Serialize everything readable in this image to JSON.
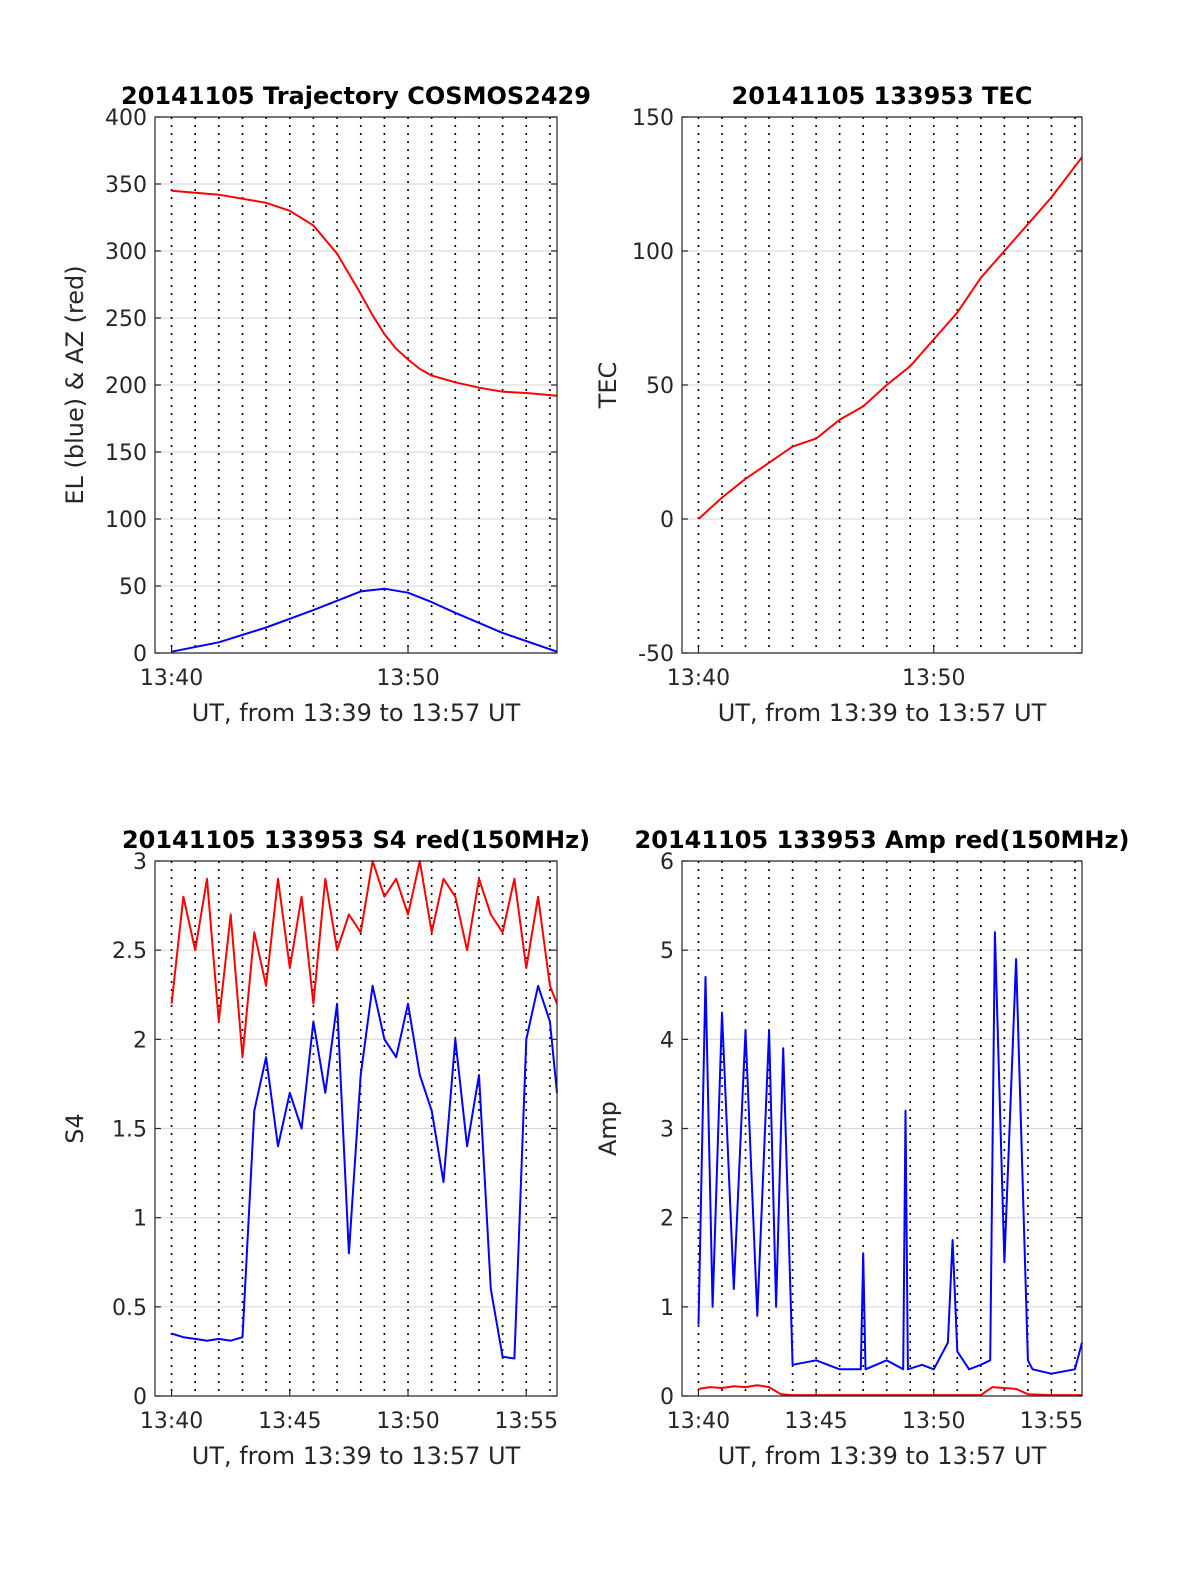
{
  "chart_data": [
    {
      "type": "line",
      "title": "20141105 Trajectory COSMOS2429",
      "xlabel": "UT, from 13:39 to 13:57 UT",
      "ylabel": "EL (blue) & AZ (red)",
      "xlim": [
        13.3,
        30.3
      ],
      "ylim": [
        0,
        400
      ],
      "x_ticks": [
        {
          "value": 14,
          "label": "13:40"
        },
        {
          "value": 24,
          "label": "13:50"
        }
      ],
      "y_ticks": [
        0,
        50,
        100,
        150,
        200,
        250,
        300,
        350,
        400
      ],
      "grid": "on",
      "series": [
        {
          "color": "#ff0000",
          "x": [
            14,
            16,
            18,
            19,
            20,
            21,
            22,
            22.5,
            23,
            23.5,
            24,
            24.5,
            25,
            26,
            27,
            28,
            29,
            30.3
          ],
          "y": [
            345,
            342,
            336,
            330,
            319,
            298,
            268,
            252,
            238,
            227,
            219,
            212,
            207,
            202,
            198,
            195,
            194,
            192
          ]
        },
        {
          "color": "#0000ff",
          "x": [
            14,
            16,
            18,
            20,
            22,
            23,
            24,
            25,
            26,
            28,
            30.3
          ],
          "y": [
            1,
            8,
            19,
            32,
            46,
            48,
            45,
            38,
            30,
            15,
            1
          ]
        }
      ]
    },
    {
      "type": "line",
      "title": "20141105 133953 TEC",
      "xlabel": "UT, from 13:39 to 13:57 UT",
      "ylabel": "TEC",
      "xlim": [
        13.3,
        30.3
      ],
      "ylim": [
        -50,
        150
      ],
      "x_ticks": [
        {
          "value": 14,
          "label": "13:40"
        },
        {
          "value": 24,
          "label": "13:50"
        }
      ],
      "y_ticks": [
        -50,
        0,
        50,
        100,
        150
      ],
      "grid": "on",
      "series": [
        {
          "color": "#ff0000",
          "x": [
            14,
            15,
            16,
            17,
            18,
            19,
            20,
            21,
            22,
            23,
            24,
            25,
            26,
            27,
            28,
            29,
            30.3
          ],
          "y": [
            0,
            8,
            15,
            21,
            27,
            30,
            37,
            42,
            50,
            57,
            67,
            77,
            90,
            100,
            110,
            120,
            135
          ]
        }
      ]
    },
    {
      "type": "line",
      "title": "20141105 133953 S4 red(150MHz)",
      "xlabel": "UT, from 13:39 to 13:57 UT",
      "ylabel": "S4",
      "xlim": [
        13.3,
        30.3
      ],
      "ylim": [
        0,
        3
      ],
      "x_ticks": [
        {
          "value": 14,
          "label": "13:40"
        },
        {
          "value": 19,
          "label": "13:45"
        },
        {
          "value": 24,
          "label": "13:50"
        },
        {
          "value": 29,
          "label": "13:55"
        }
      ],
      "y_ticks": [
        0,
        0.5,
        1,
        1.5,
        2,
        2.5,
        3
      ],
      "y_tick_labels": [
        "0",
        "0.5",
        "1",
        "1.5",
        "2",
        "2.5",
        "3"
      ],
      "grid": "on",
      "series": [
        {
          "color": "#ff0000",
          "x": [
            14,
            14.5,
            15,
            15.5,
            16,
            16.5,
            17,
            17.5,
            18,
            18.5,
            19,
            19.5,
            20,
            20.5,
            21,
            21.5,
            22,
            22.5,
            23,
            23.5,
            24,
            24.5,
            25,
            25.5,
            26,
            26.5,
            27,
            27.5,
            28,
            28.5,
            29,
            29.5,
            30,
            30.3
          ],
          "y": [
            2.2,
            2.8,
            2.5,
            2.9,
            2.1,
            2.7,
            1.9,
            2.6,
            2.3,
            2.9,
            2.4,
            2.8,
            2.2,
            2.9,
            2.5,
            2.7,
            2.6,
            3,
            2.8,
            2.9,
            2.7,
            3,
            2.6,
            2.9,
            2.8,
            2.5,
            2.9,
            2.7,
            2.6,
            2.9,
            2.4,
            2.8,
            2.3,
            2.2
          ]
        },
        {
          "color": "#0000ff",
          "x": [
            14,
            14.5,
            15,
            15.5,
            16,
            16.5,
            17,
            17.5,
            18,
            18.5,
            19,
            19.5,
            20,
            20.5,
            21,
            21.5,
            22,
            22.5,
            23,
            23.5,
            24,
            24.5,
            25,
            25.5,
            26,
            26.5,
            27,
            27.5,
            28,
            28.5,
            29,
            29.5,
            30,
            30.3
          ],
          "y": [
            0.35,
            0.33,
            0.32,
            0.31,
            0.32,
            0.31,
            0.33,
            1.6,
            1.9,
            1.4,
            1.7,
            1.5,
            2.1,
            1.7,
            2.2,
            0.8,
            1.8,
            2.3,
            2.0,
            1.9,
            2.2,
            1.8,
            1.6,
            1.2,
            2.0,
            1.4,
            1.8,
            0.6,
            0.22,
            0.21,
            2.0,
            2.3,
            2.1,
            1.7
          ]
        }
      ]
    },
    {
      "type": "line",
      "title": "20141105 133953 Amp red(150MHz)",
      "xlabel": "UT, from 13:39 to 13:57 UT",
      "ylabel": "Amp",
      "xlim": [
        13.3,
        30.3
      ],
      "ylim": [
        0,
        6
      ],
      "x_ticks": [
        {
          "value": 14,
          "label": "13:40"
        },
        {
          "value": 19,
          "label": "13:45"
        },
        {
          "value": 24,
          "label": "13:50"
        },
        {
          "value": 29,
          "label": "13:55"
        }
      ],
      "y_ticks": [
        0,
        1,
        2,
        3,
        4,
        5,
        6
      ],
      "grid": "on",
      "series": [
        {
          "color": "#ff0000",
          "x": [
            14,
            14.5,
            15,
            15.5,
            16,
            16.5,
            17,
            17.5,
            18,
            19,
            20,
            21,
            22,
            23,
            24,
            25,
            26,
            26.5,
            27,
            27.5,
            28,
            29,
            30,
            30.3
          ],
          "y": [
            0.08,
            0.1,
            0.09,
            0.11,
            0.1,
            0.12,
            0.1,
            0.02,
            0.01,
            0.01,
            0.01,
            0.01,
            0.01,
            0.01,
            0.01,
            0.01,
            0.01,
            0.1,
            0.09,
            0.08,
            0.02,
            0.01,
            0.01,
            0.01
          ]
        },
        {
          "color": "#0000ff",
          "x": [
            14,
            14.3,
            14.6,
            15,
            15.5,
            16,
            16.5,
            17,
            17.3,
            17.6,
            18,
            19,
            20,
            20.9,
            21,
            21.1,
            22,
            22.7,
            22.8,
            22.9,
            23.5,
            24,
            24.6,
            24.8,
            25,
            25.5,
            26,
            26.4,
            26.6,
            27,
            27.5,
            28,
            28.2,
            29,
            30,
            30.3
          ],
          "y": [
            0.8,
            4.7,
            1.0,
            4.3,
            1.2,
            4.1,
            0.9,
            4.1,
            1.0,
            3.9,
            0.35,
            0.4,
            0.3,
            0.3,
            1.6,
            0.3,
            0.4,
            0.3,
            3.2,
            0.3,
            0.35,
            0.3,
            0.6,
            1.75,
            0.5,
            0.3,
            0.35,
            0.4,
            5.2,
            1.5,
            4.9,
            0.4,
            0.3,
            0.25,
            0.3,
            0.6
          ]
        }
      ]
    }
  ]
}
